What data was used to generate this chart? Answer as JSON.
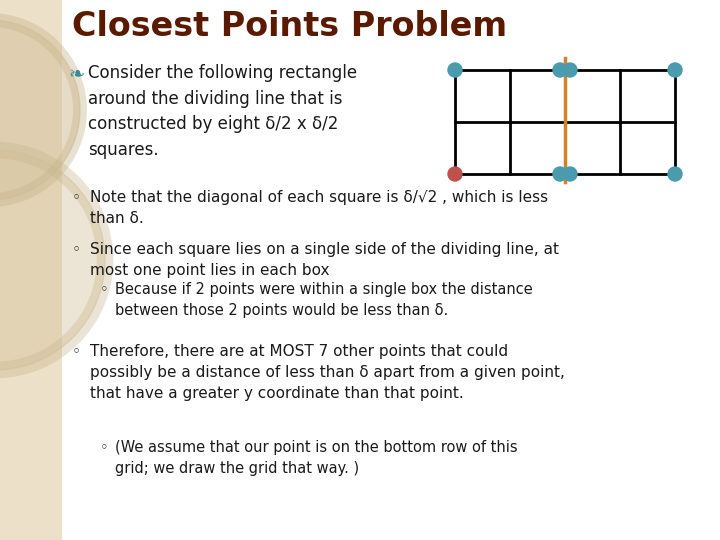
{
  "title": "Closest Points Problem",
  "title_color": "#5B1A00",
  "title_fontsize": 24,
  "bg_color": "#FFFFFF",
  "left_panel_color": "#EDE0C8",
  "text_color": "#1a1a1a",
  "bullet_color": "#3A8A9A",
  "grid_color": "#000000",
  "divider_color": "#D4822A",
  "dot_color_teal": "#4A9BAD",
  "dot_color_red": "#C0504D",
  "bullet1_text": "Consider the following rectangle\naround the dividing line that is\nconstructed by eight δ/2 x δ/2\nsquares.",
  "note1_bullet": "◦",
  "note1_text": "Note that the diagonal of each square is δ/√2 , which is less\nthan δ.",
  "note2_bullet": "◦",
  "note2_text": "Since each square lies on a single side of the dividing line, at\nmost one point lies in each box",
  "note2b_bullet": "◦",
  "note2b_text": "Because if 2 points were within a single box the distance\nbetween those 2 points would be less than δ.",
  "note3_bullet": "◦",
  "note3_text": "Therefore, there are at MOST 7 other points that could\npossibly be a distance of less than δ apart from a given point,\nthat have a greater y coordinate than that point.",
  "note3b_bullet": "◦",
  "note3b_text": "(We assume that our point is on the bottom row of this\ngrid; we draw the grid that way. )"
}
